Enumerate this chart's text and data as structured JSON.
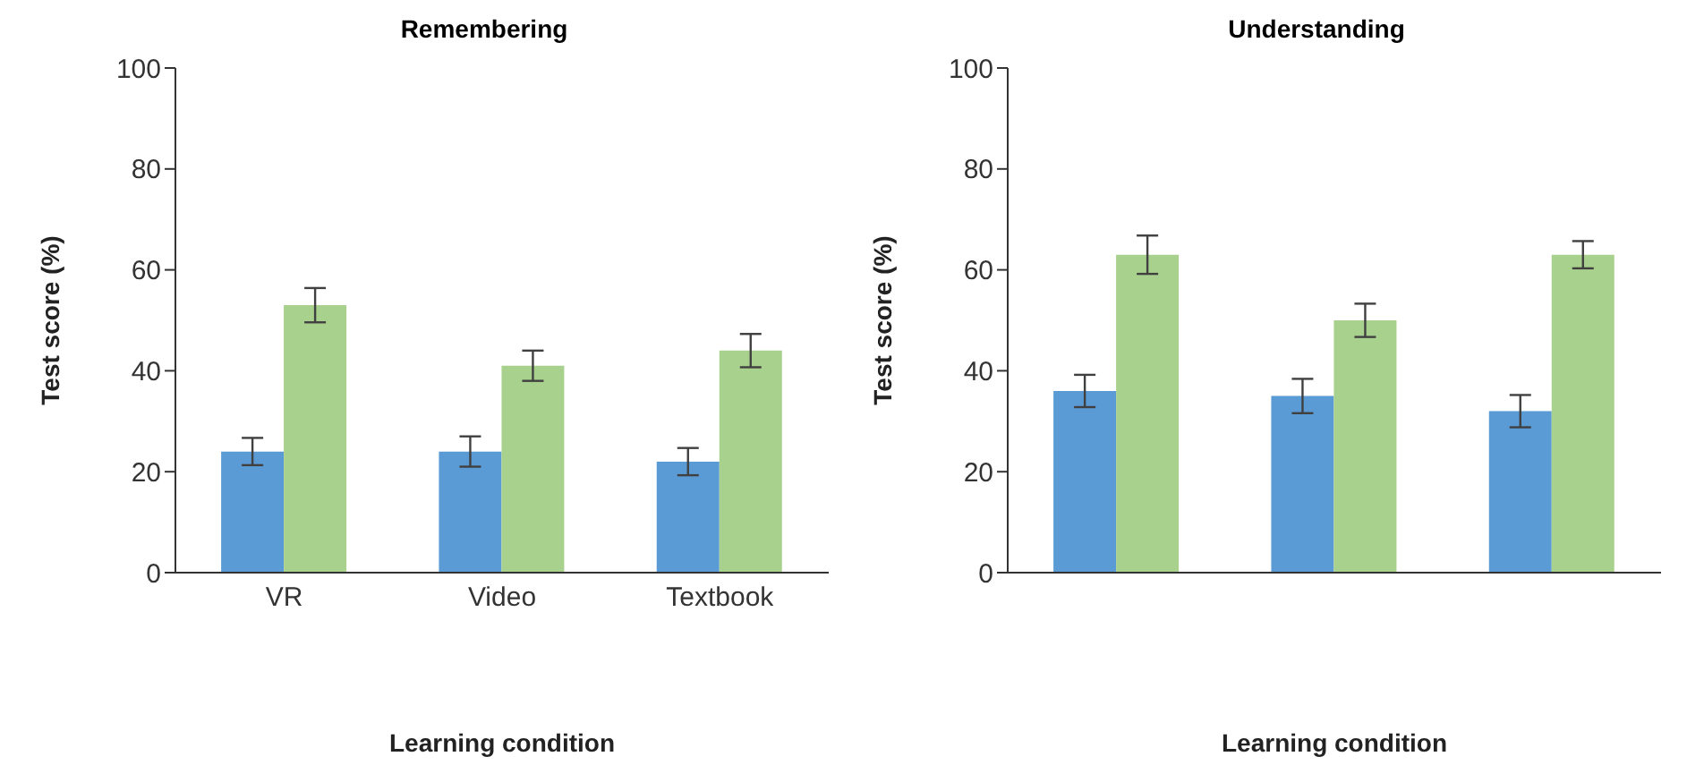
{
  "chart_data": [
    {
      "type": "bar",
      "title": "Remembering",
      "xlabel": "Learning condition",
      "ylabel": "Test score (%)",
      "categories": [
        "VR",
        "Video",
        "Textbook"
      ],
      "series": [
        {
          "color": "#5b9bd5",
          "values": [
            24,
            24,
            22
          ],
          "errors": [
            2.7,
            3,
            2.7
          ]
        },
        {
          "color": "#a9d18e",
          "values": [
            53,
            41,
            44
          ],
          "errors": [
            3.4,
            3,
            3.3
          ]
        }
      ],
      "ylim": [
        0,
        100
      ],
      "yticks": [
        0,
        20,
        40,
        60,
        80,
        100
      ]
    },
    {
      "type": "bar",
      "title": "Understanding",
      "xlabel": "Learning condition",
      "ylabel": "Test score (%)",
      "categories": [
        null,
        null,
        null
      ],
      "series": [
        {
          "color": "#5b9bd5",
          "values": [
            36,
            35,
            32
          ],
          "errors": [
            3.2,
            3.4,
            3.2
          ]
        },
        {
          "color": "#a9d18e",
          "values": [
            63,
            50,
            63
          ],
          "errors": [
            3.8,
            3.3,
            2.7
          ]
        }
      ],
      "ylim": [
        0,
        100
      ],
      "yticks": [
        0,
        20,
        40,
        60,
        80,
        100
      ]
    }
  ]
}
